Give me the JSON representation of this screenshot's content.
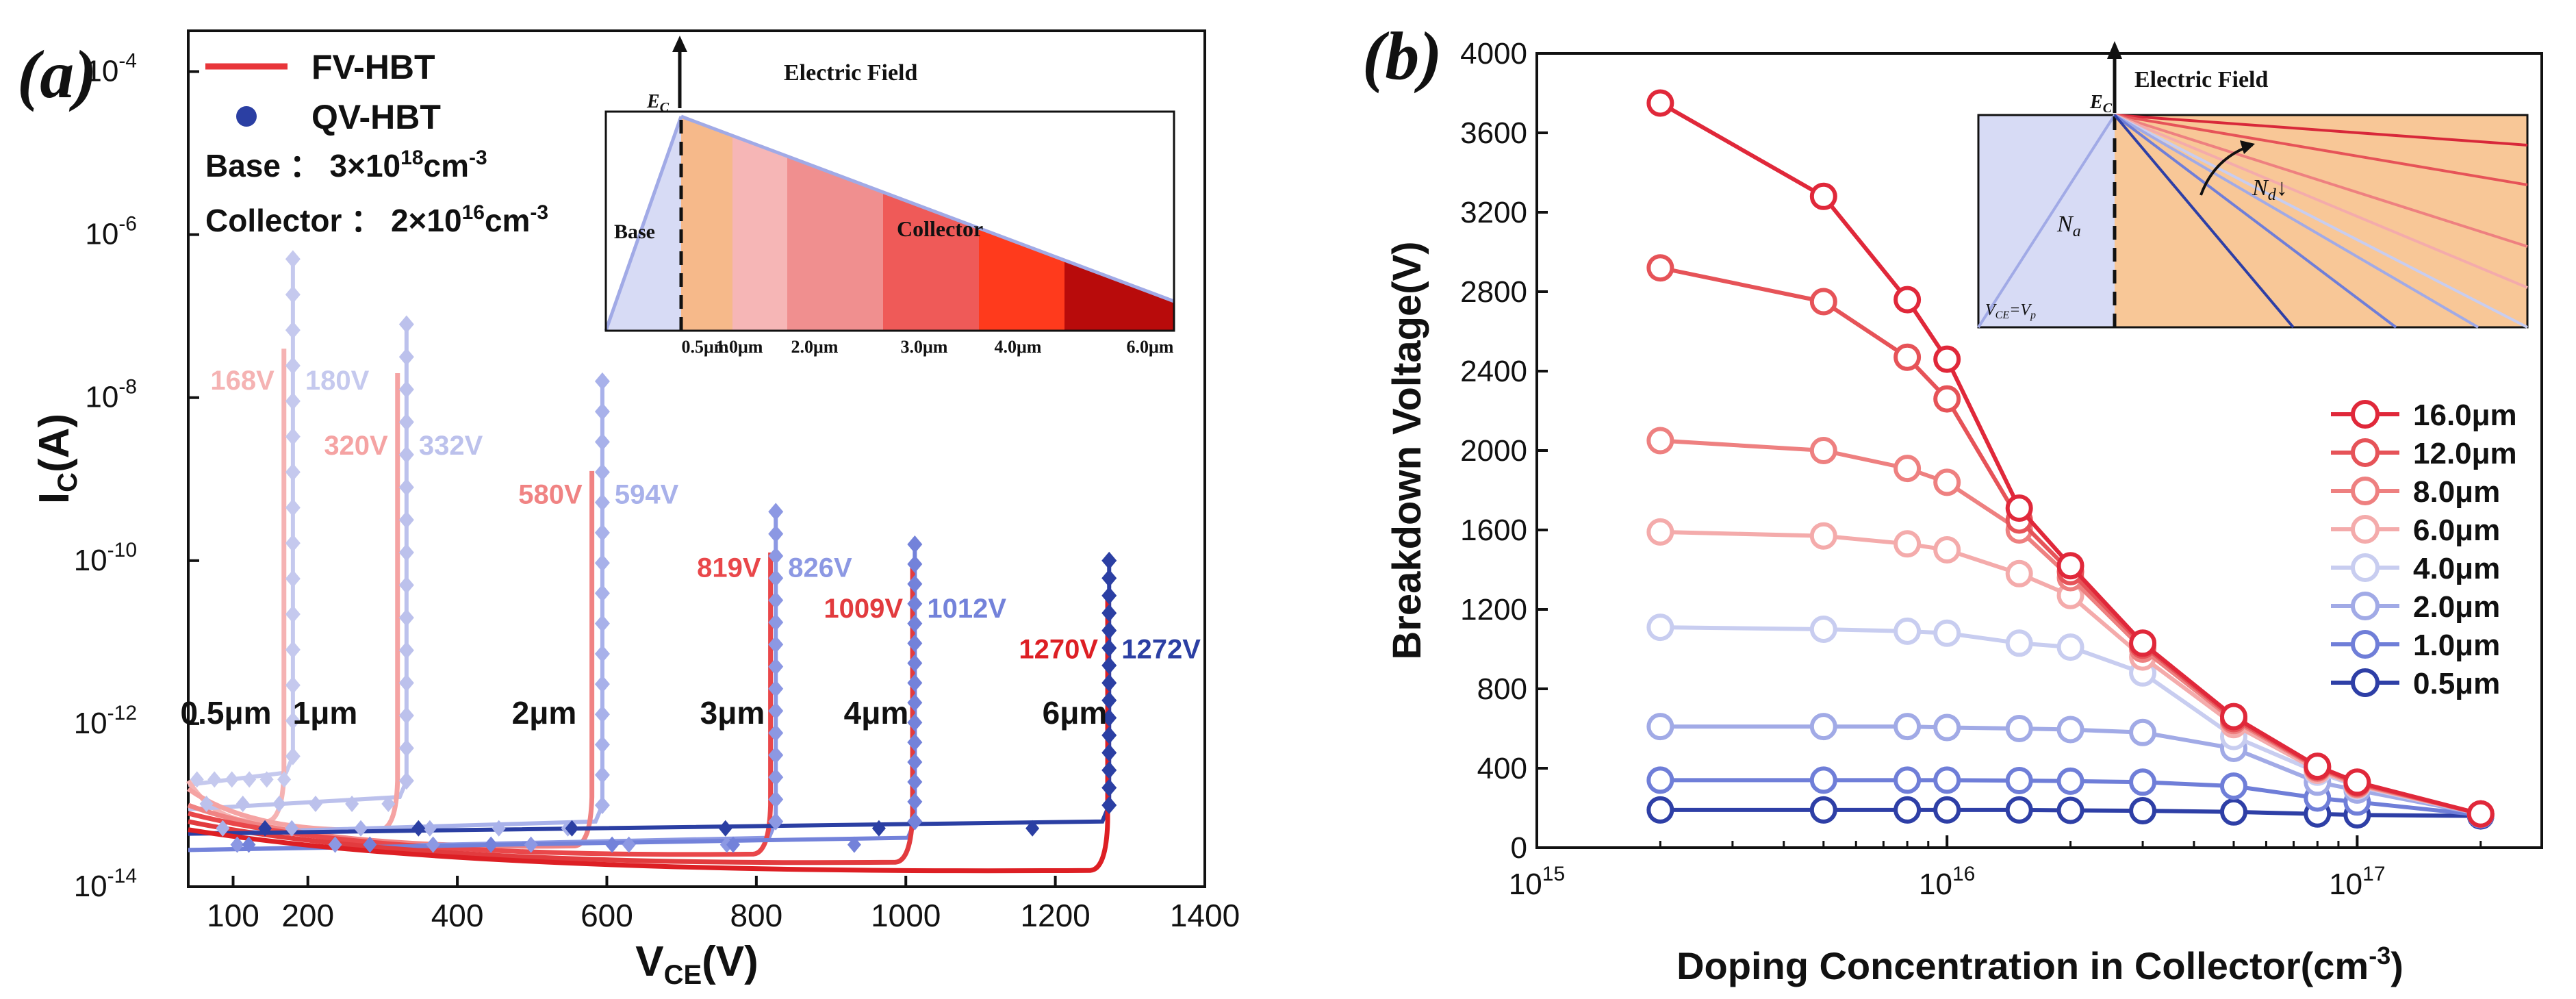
{
  "chart_data": [
    {
      "panel": "(a)",
      "type": "line",
      "xlabel_main": "V",
      "xlabel_sub": "CE",
      "xlabel_unit": "(V)",
      "ylabel_main": "I",
      "ylabel_sub": "C",
      "ylabel_unit": "(A)",
      "xlim": [
        40,
        1400
      ],
      "ylim_log10": [
        -14,
        -3.5
      ],
      "xticks": [
        100,
        200,
        400,
        600,
        800,
        1000,
        1200,
        1400
      ],
      "xtick_labels": [
        "100",
        "200",
        "400",
        "600",
        "800",
        "1000",
        "1200",
        "1400"
      ],
      "yticks_exp": [
        -14,
        -12,
        -10,
        -8,
        -6,
        -4
      ],
      "ytick_labels": [
        "-14",
        "-12",
        "-10",
        "-8",
        "-6",
        "-4"
      ],
      "legend": [
        {
          "label": "FV-HBT",
          "marker": "line",
          "color": "#e8363a"
        },
        {
          "label": "QV-HBT",
          "marker": "dot",
          "color": "#2b3fa3"
        }
      ],
      "params": {
        "base_label": "Base",
        "base_mantissa": "3×10",
        "base_exp": "18",
        "collector_label": "Collector",
        "collector_mantissa": "2×10",
        "collector_exp": "16",
        "unit": "cm",
        "unit_exp": "-3"
      },
      "series": [
        {
          "thickness": "0.5μm",
          "fv_bv": 168,
          "qv_bv": 180,
          "fv_label": "168V",
          "qv_label": "180V",
          "fv_color": "#f5b3b3",
          "qv_color": "#c5c9ee",
          "fv_peak_exp": -7.4,
          "qv_peak_exp": -6.3,
          "fv_leak_exp": -13.2,
          "qv_leak_exp": -12.6
        },
        {
          "thickness": "1μm",
          "fv_bv": 320,
          "qv_bv": 332,
          "fv_label": "320V",
          "qv_label": "332V",
          "fv_color": "#f5a3a3",
          "qv_color": "#bcc1ec",
          "fv_peak_exp": -7.7,
          "qv_peak_exp": -7.1,
          "fv_leak_exp": -13.3,
          "qv_leak_exp": -12.9
        },
        {
          "thickness": "2μm",
          "fv_bv": 580,
          "qv_bv": 594,
          "fv_label": "580V",
          "qv_label": "594V",
          "fv_color": "#f08383",
          "qv_color": "#a8b1ea",
          "fv_peak_exp": -8.9,
          "qv_peak_exp": -7.8,
          "fv_leak_exp": -13.5,
          "qv_leak_exp": -13.2
        },
        {
          "thickness": "3μm",
          "fv_bv": 819,
          "qv_bv": 826,
          "fv_label": "819V",
          "qv_label": "826V",
          "fv_color": "#e9474a",
          "qv_color": "#8c98e3",
          "fv_peak_exp": -9.9,
          "qv_peak_exp": -9.4,
          "fv_leak_exp": -13.6,
          "qv_leak_exp": -13.4
        },
        {
          "thickness": "4μm",
          "fv_bv": 1009,
          "qv_bv": 1012,
          "fv_label": "1009V",
          "qv_label": "1012V",
          "fv_color": "#e23b3e",
          "qv_color": "#7382da",
          "fv_peak_exp": -10.0,
          "qv_peak_exp": -9.8,
          "fv_leak_exp": -13.7,
          "qv_leak_exp": -13.4
        },
        {
          "thickness": "6μm",
          "fv_bv": 1270,
          "qv_bv": 1272,
          "fv_label": "1270V",
          "qv_label": "1272V",
          "fv_color": "#dd1f24",
          "qv_color": "#2b3fa3",
          "fv_peak_exp": -10.4,
          "qv_peak_exp": -10.0,
          "fv_leak_exp": -13.8,
          "qv_leak_exp": -13.2
        }
      ],
      "inset": {
        "title": "Electric Field",
        "ec_main": "E",
        "ec_sub": "C",
        "base_label": "Base",
        "collector_label": "Collector",
        "tick_labels": [
          "0.5μm",
          "1.0μm",
          "2.0μm",
          "3.0μm",
          "4.0μm",
          "6.0μm"
        ],
        "region_colors": [
          "#f6b98a",
          "#f6b6b6",
          "#f08f8f",
          "#ef5a58",
          "#ff3a1c",
          "#b80b0b"
        ]
      }
    },
    {
      "panel": "(b)",
      "type": "line",
      "xlabel_main": "Doping Concentration in Collector(cm",
      "xlabel_exp": "-3",
      "xlabel_tail": ")",
      "ylabel": "Breakdown Voltage(V)",
      "xscale": "log",
      "xlim_log10": [
        15,
        17.45
      ],
      "ylim": [
        0,
        4000
      ],
      "xtick_exps": [
        15,
        16,
        17
      ],
      "xtick_base": "10",
      "xtick_labels": [
        "15",
        "16",
        "17"
      ],
      "yticks": [
        0,
        400,
        800,
        1200,
        1600,
        2000,
        2400,
        2800,
        3200,
        3600,
        4000
      ],
      "ytick_labels": [
        "0",
        "400",
        "800",
        "1200",
        "1600",
        "2000",
        "2400",
        "2800",
        "3200",
        "3600",
        "4000"
      ],
      "x": [
        2000000000000000.0,
        5000000000000000.0,
        8000000000000000.0,
        1e+16,
        1.5e+16,
        2e+16,
        3e+16,
        5e+16,
        8e+16,
        1e+17,
        2e+17
      ],
      "series": [
        {
          "name": "16.0μm",
          "color": "#e0283a",
          "values": [
            3750,
            3280,
            2760,
            2460,
            1710,
            1420,
            1030,
            660,
            410,
            330,
            170
          ]
        },
        {
          "name": "12.0μm",
          "color": "#e65358",
          "values": [
            2920,
            2750,
            2470,
            2260,
            1650,
            1390,
            1020,
            650,
            405,
            325,
            170
          ]
        },
        {
          "name": "8.0μm",
          "color": "#ee8080",
          "values": [
            2050,
            2000,
            1910,
            1840,
            1600,
            1360,
            1000,
            640,
            400,
            320,
            170
          ]
        },
        {
          "name": "6.0μm",
          "color": "#f4abab",
          "values": [
            1590,
            1570,
            1530,
            1500,
            1380,
            1270,
            960,
            620,
            390,
            315,
            170
          ]
        },
        {
          "name": "4.0μm",
          "color": "#c8cdf0",
          "values": [
            1110,
            1100,
            1090,
            1080,
            1030,
            1010,
            880,
            560,
            380,
            310,
            170
          ]
        },
        {
          "name": "2.0μm",
          "color": "#a1aae6",
          "values": [
            610,
            610,
            610,
            605,
            600,
            595,
            580,
            500,
            330,
            290,
            170
          ]
        },
        {
          "name": "1.0μm",
          "color": "#6f7ed8",
          "values": [
            340,
            340,
            340,
            340,
            338,
            335,
            330,
            310,
            250,
            230,
            165
          ]
        },
        {
          "name": "0.5μm",
          "color": "#2e3fa6",
          "values": [
            190,
            190,
            190,
            190,
            190,
            188,
            186,
            180,
            170,
            165,
            160
          ]
        }
      ],
      "inset": {
        "title": "Electric Field",
        "ec_main": "E",
        "ec_sub": "C",
        "na_main": "N",
        "na_sub": "a",
        "nd_main": "N",
        "nd_sub": "d",
        "nd_arrow": "↓",
        "vce_main": "V",
        "vce_sub": "CE",
        "vce_mid": "=V",
        "vp_sub": "p",
        "line_colors": [
          "#d8283a",
          "#e65358",
          "#ee8080",
          "#f4abab",
          "#c8cdf0",
          "#a1aae6",
          "#6f7ed8",
          "#2e3fa6"
        ]
      }
    }
  ]
}
